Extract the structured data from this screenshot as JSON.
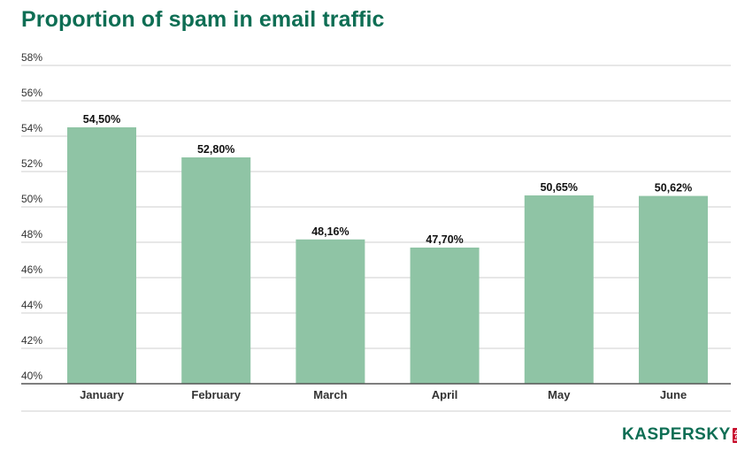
{
  "chart_data": {
    "type": "bar",
    "title": "Proportion of spam in email traffic",
    "categories": [
      "January",
      "February",
      "March",
      "April",
      "May",
      "June"
    ],
    "values": [
      54.5,
      52.8,
      48.16,
      47.7,
      50.65,
      50.62
    ],
    "data_labels": [
      "54,50%",
      "52,80%",
      "48,16%",
      "47,70%",
      "50,65%",
      "50,62%"
    ],
    "ylim": [
      40,
      58
    ],
    "yticks": [
      40,
      42,
      44,
      46,
      48,
      50,
      52,
      54,
      56,
      58
    ],
    "ytick_labels": [
      "40%",
      "42%",
      "44%",
      "46%",
      "48%",
      "50%",
      "52%",
      "54%",
      "56%",
      "58%"
    ],
    "xlabel": "",
    "ylabel": "",
    "grid": true,
    "legend": "none",
    "bar_color": "#8fc4a5"
  },
  "brand": {
    "name": "KASPERSKY",
    "suffix": "lab",
    "color": "#0e6e54",
    "suffix_color": "#c8102e"
  }
}
